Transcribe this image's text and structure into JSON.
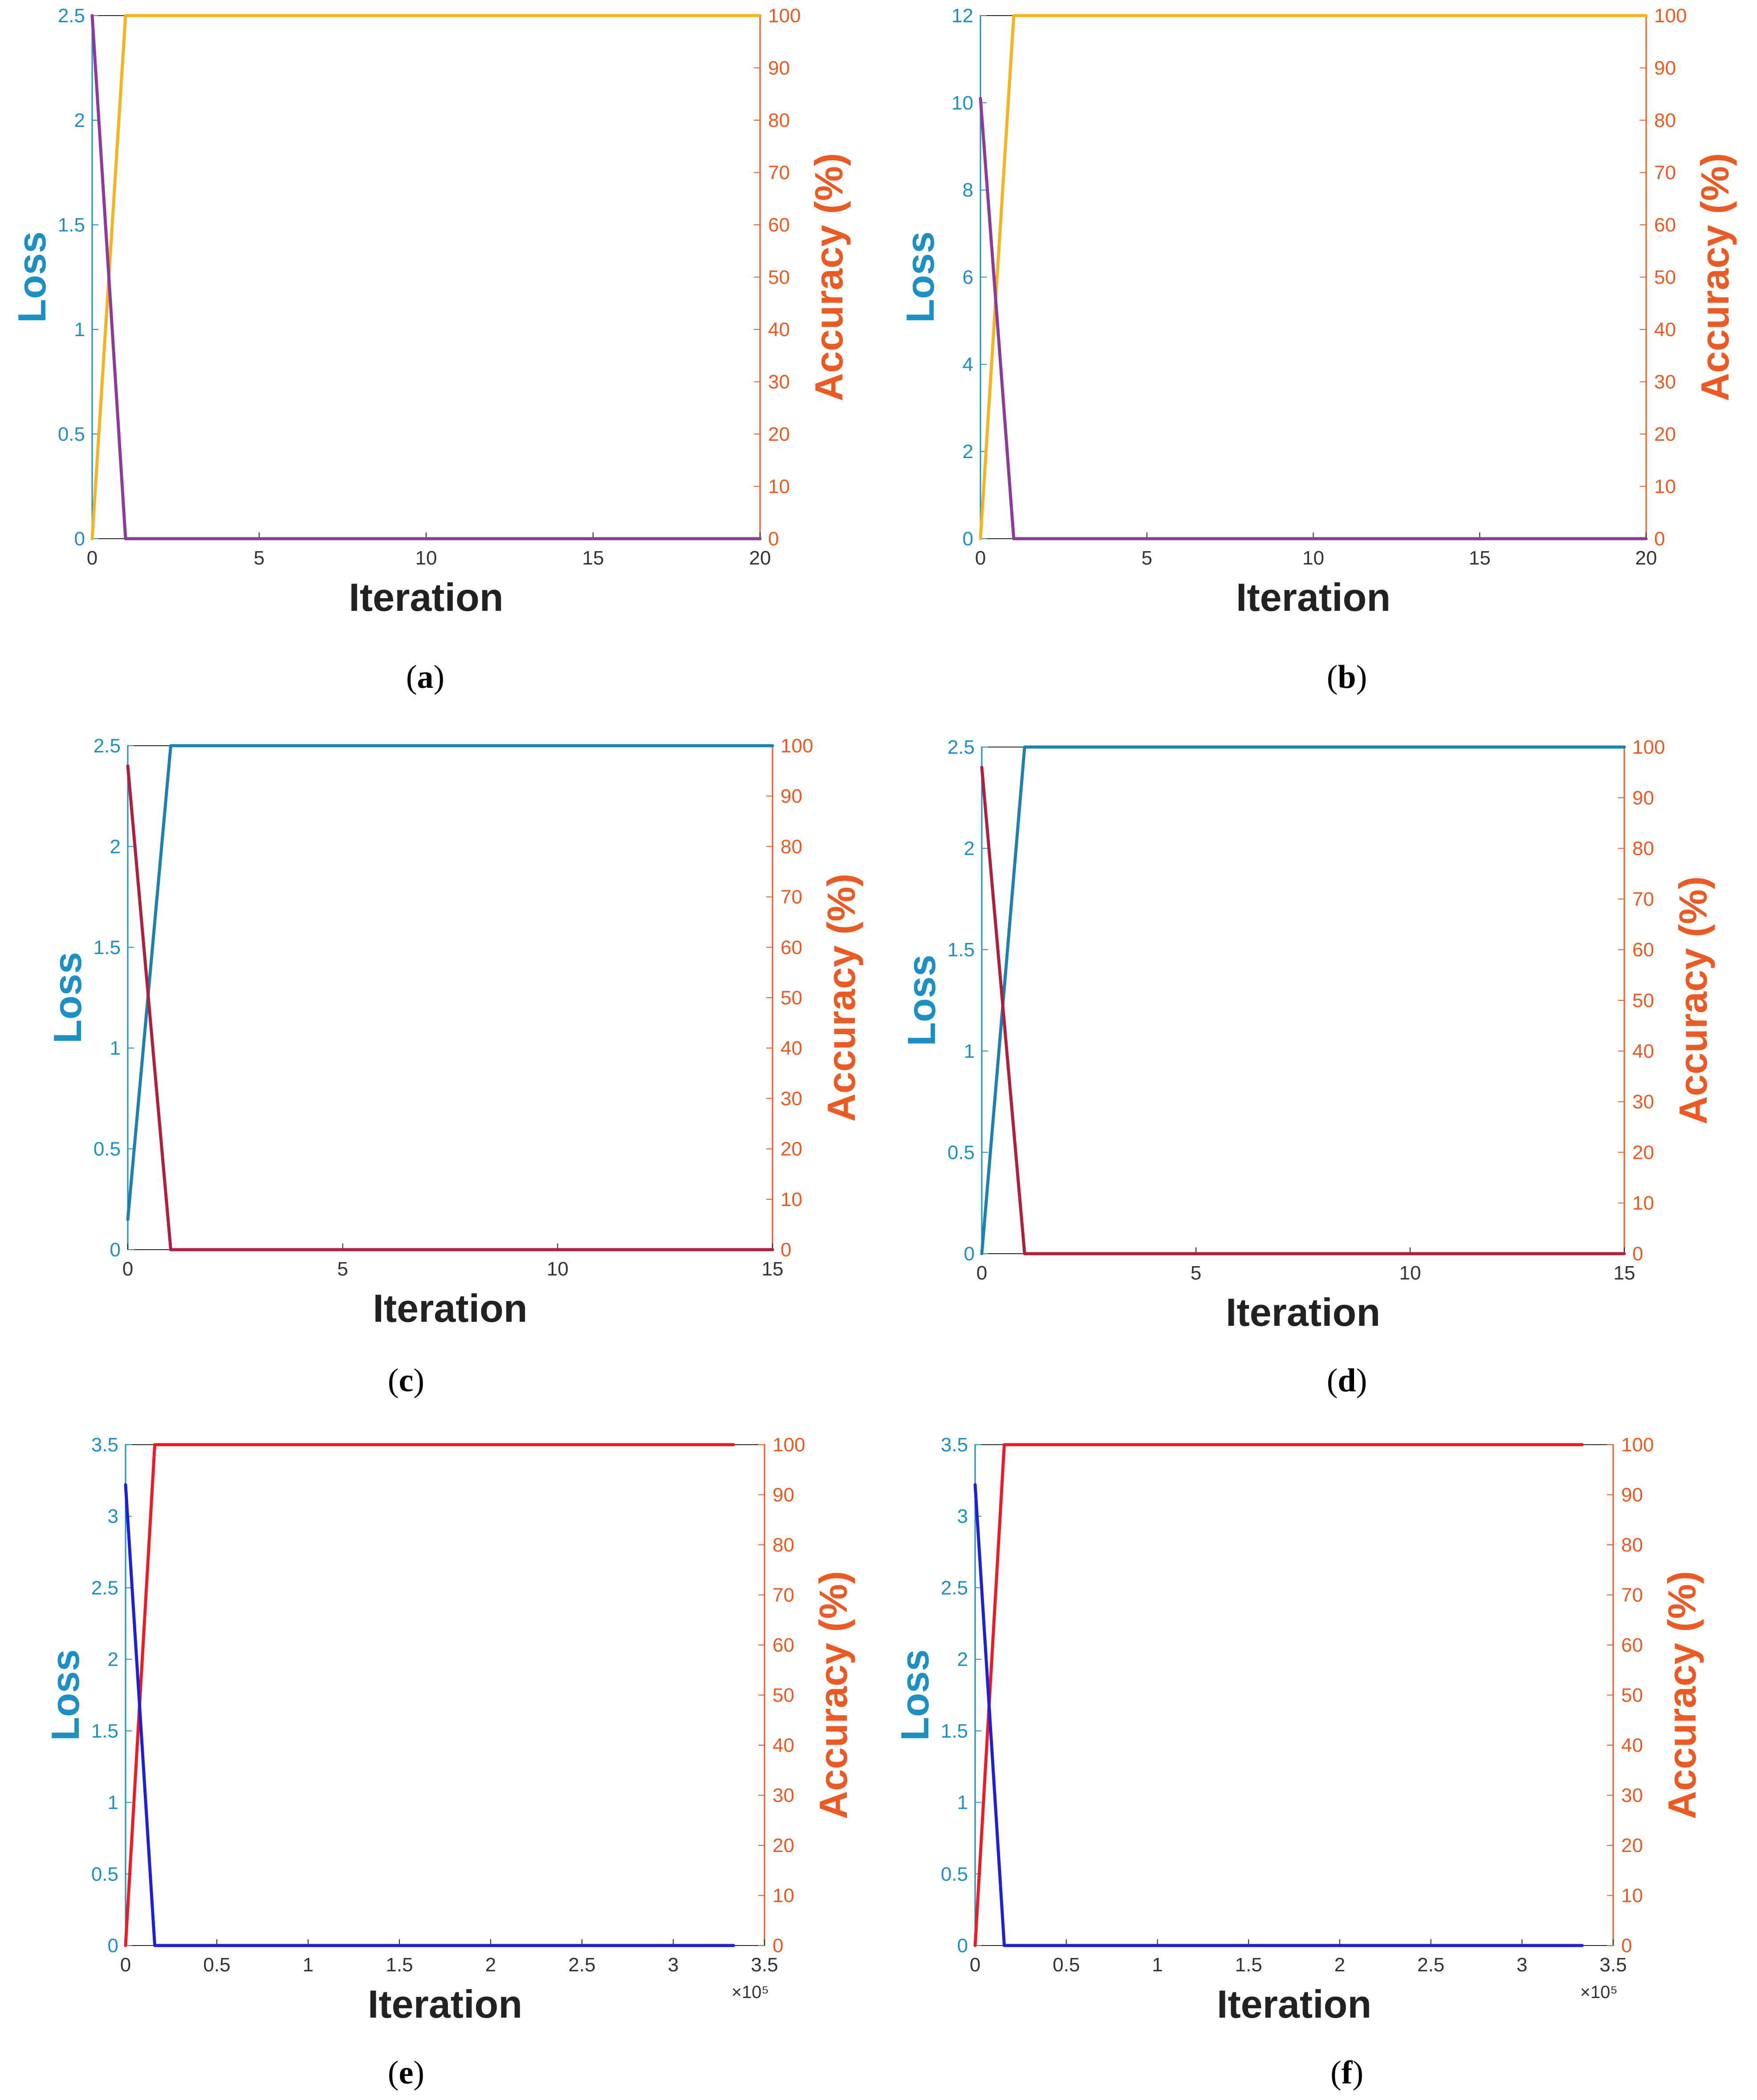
{
  "colors": {
    "loss_axis": "#1c8fc5",
    "acc_axis": "#ec5a24",
    "label_text": "#222222",
    "frame": "#262626"
  },
  "chart_data": [
    {
      "panel": "a",
      "caption_letter": "a",
      "type": "line",
      "xlabel": "Iteration",
      "ylabel_left": "Loss",
      "ylabel_right": "Accuracy (%)",
      "xlim": [
        0,
        20
      ],
      "xticks": [
        "0",
        "5",
        "10",
        "15",
        "20"
      ],
      "x_exponent": "",
      "ylim_left": [
        0,
        2.5
      ],
      "yticks_left": [
        "0",
        "0.5",
        "1",
        "1.5",
        "2",
        "2.5"
      ],
      "ylim_right": [
        0,
        100
      ],
      "yticks_right": [
        "0",
        "10",
        "20",
        "30",
        "40",
        "50",
        "60",
        "70",
        "80",
        "90",
        "100"
      ],
      "series": [
        {
          "name": "Loss",
          "axis": "left",
          "color": "#8e3a9b",
          "x": [
            0,
            1,
            20
          ],
          "y": [
            2.5,
            0,
            0
          ]
        },
        {
          "name": "Accuracy",
          "axis": "right",
          "color": "#f4b323",
          "x": [
            0,
            1,
            20
          ],
          "y": [
            0,
            100,
            100
          ]
        }
      ]
    },
    {
      "panel": "b",
      "caption_letter": "b",
      "type": "line",
      "xlabel": "Iteration",
      "ylabel_left": "Loss",
      "ylabel_right": "Accuracy (%)",
      "xlim": [
        0,
        20
      ],
      "xticks": [
        "0",
        "5",
        "10",
        "15",
        "20"
      ],
      "x_exponent": "",
      "ylim_left": [
        0,
        12
      ],
      "yticks_left": [
        "0",
        "2",
        "4",
        "6",
        "8",
        "10",
        "12"
      ],
      "ylim_right": [
        0,
        100
      ],
      "yticks_right": [
        "0",
        "10",
        "20",
        "30",
        "40",
        "50",
        "60",
        "70",
        "80",
        "90",
        "100"
      ],
      "series": [
        {
          "name": "Loss",
          "axis": "left",
          "color": "#8e3a9b",
          "x": [
            0,
            1,
            20
          ],
          "y": [
            10.1,
            0,
            0
          ]
        },
        {
          "name": "Accuracy",
          "axis": "right",
          "color": "#f4b323",
          "x": [
            0,
            1,
            20
          ],
          "y": [
            0,
            100,
            100
          ]
        }
      ]
    },
    {
      "panel": "c",
      "caption_letter": "c",
      "type": "line",
      "xlabel": "Iteration",
      "ylabel_left": "Loss",
      "ylabel_right": "Accuracy (%)",
      "xlim": [
        0,
        15
      ],
      "xticks": [
        "0",
        "5",
        "10",
        "15"
      ],
      "x_exponent": "",
      "ylim_left": [
        0,
        2.5
      ],
      "yticks_left": [
        "0",
        "0.5",
        "1",
        "1.5",
        "2",
        "2.5"
      ],
      "ylim_right": [
        0,
        100
      ],
      "yticks_right": [
        "0",
        "10",
        "20",
        "30",
        "40",
        "50",
        "60",
        "70",
        "80",
        "90",
        "100"
      ],
      "series": [
        {
          "name": "Loss",
          "axis": "left",
          "color": "#b0203e",
          "x": [
            0,
            1,
            15
          ],
          "y": [
            2.4,
            0,
            0
          ]
        },
        {
          "name": "Accuracy",
          "axis": "right",
          "color": "#1c80b0",
          "x": [
            0,
            1,
            15
          ],
          "y": [
            6,
            100,
            100
          ]
        }
      ]
    },
    {
      "panel": "d",
      "caption_letter": "d",
      "type": "line",
      "xlabel": "Iteration",
      "ylabel_left": "Loss",
      "ylabel_right": "Accuracy (%)",
      "xlim": [
        0,
        15
      ],
      "xticks": [
        "0",
        "5",
        "10",
        "15"
      ],
      "x_exponent": "",
      "ylim_left": [
        0,
        2.5
      ],
      "yticks_left": [
        "0",
        "0.5",
        "1",
        "1.5",
        "2",
        "2.5"
      ],
      "ylim_right": [
        0,
        100
      ],
      "yticks_right": [
        "0",
        "10",
        "20",
        "30",
        "40",
        "50",
        "60",
        "70",
        "80",
        "90",
        "100"
      ],
      "series": [
        {
          "name": "Loss",
          "axis": "left",
          "color": "#b0203e",
          "x": [
            0,
            1,
            15
          ],
          "y": [
            2.4,
            0,
            0
          ]
        },
        {
          "name": "Accuracy",
          "axis": "right",
          "color": "#1c80b0",
          "x": [
            0,
            1,
            15
          ],
          "y": [
            0,
            100,
            100
          ]
        }
      ]
    },
    {
      "panel": "e",
      "caption_letter": "e",
      "type": "line",
      "xlabel": "Iteration",
      "ylabel_left": "Loss",
      "ylabel_right": "Accuracy (%)",
      "xlim": [
        0,
        3.5
      ],
      "xticks": [
        "0",
        "0.5",
        "1",
        "1.5",
        "2",
        "2.5",
        "3",
        "3.5"
      ],
      "x_exponent": "×10⁵",
      "ylim_left": [
        0,
        3.5
      ],
      "yticks_left": [
        "0",
        "0.5",
        "1",
        "1.5",
        "2",
        "2.5",
        "3",
        "3.5"
      ],
      "ylim_right": [
        0,
        100
      ],
      "yticks_right": [
        "0",
        "10",
        "20",
        "30",
        "40",
        "50",
        "60",
        "70",
        "80",
        "90",
        "100"
      ],
      "series": [
        {
          "name": "Loss",
          "axis": "left",
          "color": "#1f1fd8",
          "x": [
            0,
            0.16,
            3.33
          ],
          "y": [
            3.22,
            0,
            0
          ]
        },
        {
          "name": "Accuracy",
          "axis": "right",
          "color": "#ec1c24",
          "x": [
            0,
            0.16,
            3.33
          ],
          "y": [
            0,
            100,
            100
          ]
        }
      ]
    },
    {
      "panel": "f",
      "caption_letter": "f",
      "type": "line",
      "xlabel": "Iteration",
      "ylabel_left": "Loss",
      "ylabel_right": "Accuracy (%)",
      "xlim": [
        0,
        3.5
      ],
      "xticks": [
        "0",
        "0.5",
        "1",
        "1.5",
        "2",
        "2.5",
        "3",
        "3.5"
      ],
      "x_exponent": "×10⁵",
      "ylim_left": [
        0,
        3.5
      ],
      "yticks_left": [
        "0",
        "0.5",
        "1",
        "1.5",
        "2",
        "2.5",
        "3",
        "3.5"
      ],
      "ylim_right": [
        0,
        100
      ],
      "yticks_right": [
        "0",
        "10",
        "20",
        "30",
        "40",
        "50",
        "60",
        "70",
        "80",
        "90",
        "100"
      ],
      "series": [
        {
          "name": "Loss",
          "axis": "left",
          "color": "#1f1fd8",
          "x": [
            0,
            0.16,
            3.33
          ],
          "y": [
            3.22,
            0,
            0
          ]
        },
        {
          "name": "Accuracy",
          "axis": "right",
          "color": "#ec1c24",
          "x": [
            0,
            0.16,
            3.33
          ],
          "y": [
            0,
            100,
            100
          ]
        }
      ]
    }
  ]
}
